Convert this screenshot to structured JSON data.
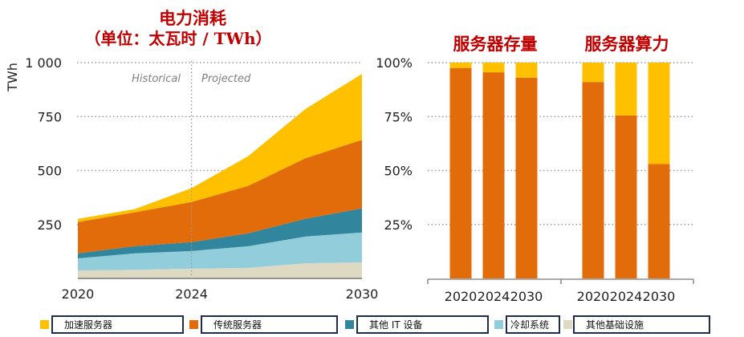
{
  "chart_data": [
    {
      "type": "area",
      "stacked": true,
      "title": "电力消耗",
      "subtitle": "（单位：太瓦时 / TWh）",
      "ylabel": "TWh",
      "xlabel": "",
      "ylim": [
        0,
        1000
      ],
      "yticks": [
        250,
        500,
        750,
        1000
      ],
      "ytick_labels": [
        "250",
        "500",
        "750",
        "1 000"
      ],
      "x": [
        2020,
        2022,
        2024,
        2026,
        2028,
        2030
      ],
      "xticks": [
        2020,
        2024,
        2030
      ],
      "xtick_labels": [
        "2020",
        "2024",
        "2030"
      ],
      "grid": true,
      "annotations": [
        {
          "text": "Historical",
          "side": "left",
          "at_x": 2024
        },
        {
          "text": "Projected",
          "side": "right",
          "at_x": 2024
        }
      ],
      "divider_x": 2024,
      "series": [
        {
          "name": "其他基础设施",
          "color": "#ddd9c3",
          "values": [
            37,
            40,
            45,
            49,
            70,
            75
          ]
        },
        {
          "name": "冷却系统",
          "color": "#92cddc",
          "values": [
            56,
            76,
            82,
            100,
            124,
            138
          ]
        },
        {
          "name": "其他IT设备",
          "color": "#31859c",
          "values": [
            23,
            33,
            41,
            60,
            82,
            112
          ]
        },
        {
          "name": "传统服务器",
          "color": "#e36c0a",
          "values": [
            145,
            157,
            186,
            220,
            280,
            317
          ]
        },
        {
          "name": "加速服务器",
          "color": "#ffc000",
          "values": [
            15,
            15,
            64,
            138,
            228,
            306
          ]
        }
      ]
    },
    {
      "type": "bar",
      "stacked": true,
      "percent": true,
      "title": "服务器存量",
      "categories": [
        "2020",
        "2024",
        "2030"
      ],
      "ylim": [
        0,
        100
      ],
      "yticks": [
        25,
        50,
        75,
        100
      ],
      "ytick_labels": [
        "25%",
        "50%",
        "75%",
        "100%"
      ],
      "grid": true,
      "series": [
        {
          "name": "传统服务器",
          "color": "#e36c0a",
          "values": [
            97.5,
            95.5,
            93
          ]
        },
        {
          "name": "加速服务器",
          "color": "#ffc000",
          "values": [
            2.5,
            4.5,
            7
          ]
        }
      ]
    },
    {
      "type": "bar",
      "stacked": true,
      "percent": true,
      "title": "服务器算力",
      "categories": [
        "2020",
        "2024",
        "2030"
      ],
      "ylim": [
        0,
        100
      ],
      "yticks": [
        25,
        50,
        75,
        100
      ],
      "ytick_labels": [
        "25%",
        "50%",
        "75%",
        "100%"
      ],
      "grid": true,
      "series": [
        {
          "name": "传统服务器",
          "color": "#e36c0a",
          "values": [
            91,
            75.5,
            53
          ]
        },
        {
          "name": "加速服务器",
          "color": "#ffc000",
          "values": [
            9,
            24.5,
            47
          ]
        }
      ]
    }
  ],
  "legend": {
    "position": "bottom",
    "items": [
      {
        "label": "加速服务器",
        "color": "#ffc000"
      },
      {
        "label": "传统服务器",
        "color": "#e36c0a"
      },
      {
        "label": "其他 IT 设备",
        "color": "#31859c"
      },
      {
        "label": "冷却系统",
        "color": "#92cddc"
      },
      {
        "label": "其他基础设施",
        "color": "#ddd9c3"
      }
    ]
  }
}
